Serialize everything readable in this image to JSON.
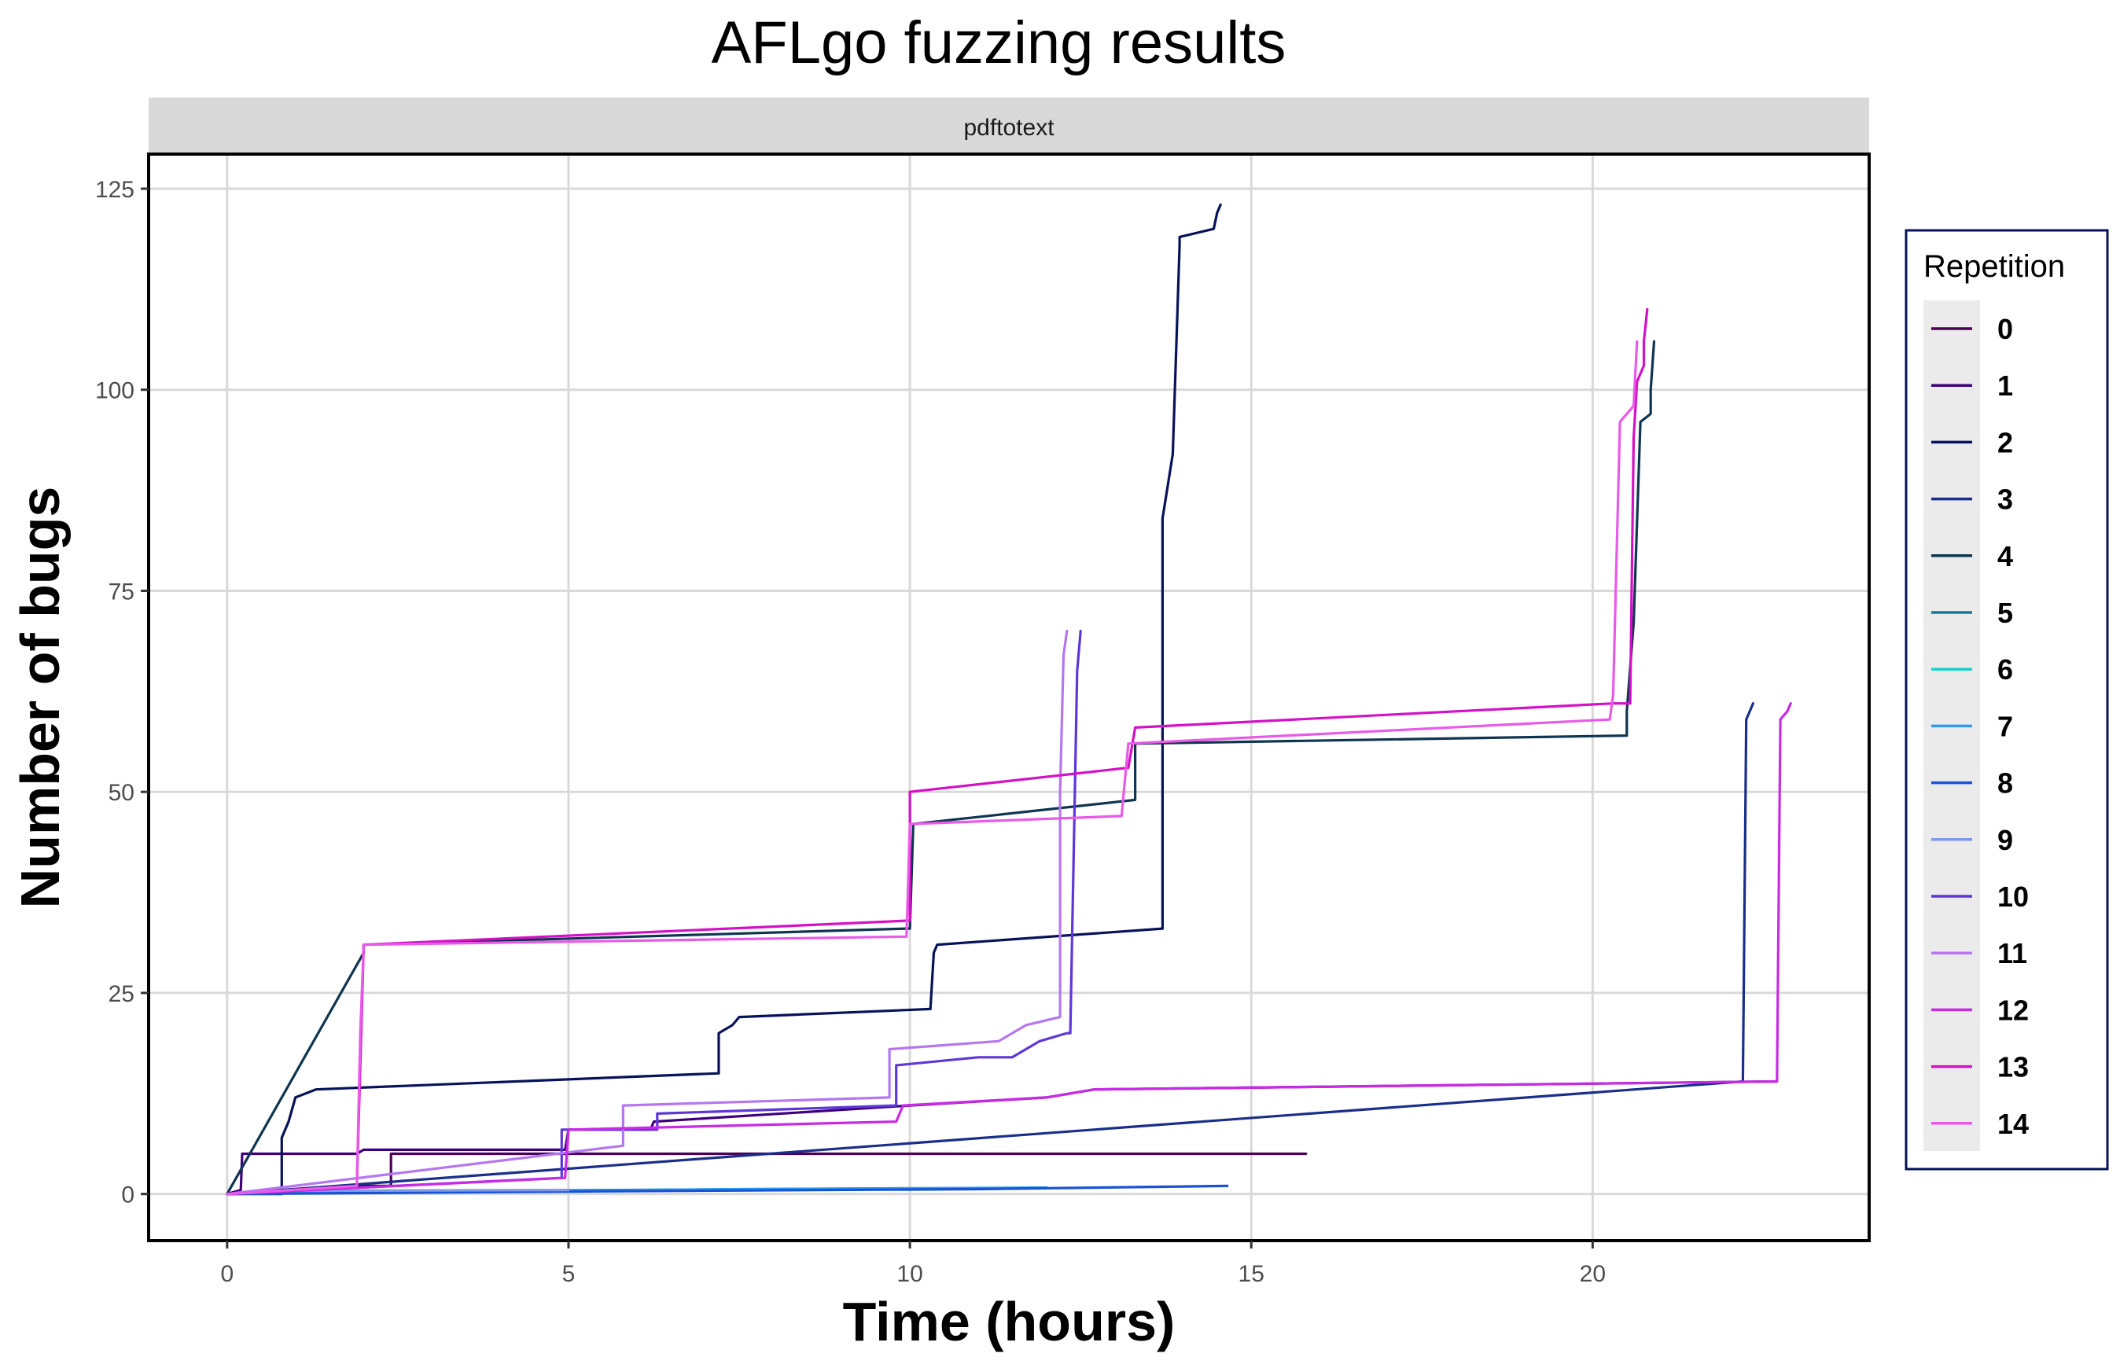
{
  "chart_data": {
    "type": "line",
    "title": "AFLgo fuzzing results",
    "facet_label": "pdftotext",
    "xlabel": "Time (hours)",
    "ylabel": "Number of bugs",
    "xlim": [
      -1.15,
      24.05
    ],
    "ylim": [
      -5.8,
      129.3
    ],
    "x_ticks": [
      0,
      5,
      10,
      15,
      20
    ],
    "y_ticks": [
      0,
      25,
      50,
      75,
      100,
      125
    ],
    "grid": true,
    "legend": {
      "title": "Repetition",
      "position": "right"
    },
    "series": [
      {
        "name": "0",
        "color": "#4B0055",
        "x": [
          0,
          1.8,
          2.4,
          2.4,
          15.8
        ],
        "y": [
          0,
          1,
          1,
          5,
          5
        ]
      },
      {
        "name": "1",
        "color": "#3F007D",
        "x": [
          0,
          0.2,
          0.22,
          1.9,
          2.0,
          4.95,
          5.0,
          6.2,
          6.25,
          10.0,
          12.0,
          12.7,
          22.7
        ],
        "y": [
          0,
          0.5,
          5,
          5,
          5.5,
          5.5,
          8,
          8,
          9,
          11,
          12,
          13,
          14
        ]
      },
      {
        "name": "2",
        "color": "#08125A",
        "x": [
          0,
          0.8,
          0.8,
          0.9,
          1.0,
          1.3,
          7.2,
          7.2,
          7.4,
          7.5,
          10.3,
          10.35,
          10.4,
          13.7,
          13.7,
          13.85,
          13.95,
          13.95,
          14.45,
          14.5,
          14.55
        ],
        "y": [
          0,
          0,
          7,
          9,
          12,
          13,
          15,
          20,
          21,
          22,
          23,
          30,
          31,
          33,
          84,
          92,
          118,
          119,
          120,
          122,
          123
        ]
      },
      {
        "name": "3",
        "color": "#1A2E8A",
        "x": [
          0,
          22.2,
          22.25,
          22.3,
          22.35
        ],
        "y": [
          0,
          14,
          59,
          60,
          61
        ]
      },
      {
        "name": "4",
        "color": "#0F3550",
        "x": [
          0,
          2.0,
          2.0,
          9.95,
          10.0,
          10.05,
          13.3,
          13.3,
          20.5,
          20.5,
          20.6,
          20.7,
          20.85,
          20.85,
          20.9
        ],
        "y": [
          0,
          30,
          31,
          33,
          33,
          46,
          49,
          56,
          57,
          60,
          71,
          96,
          97,
          100,
          106
        ]
      },
      {
        "name": "5",
        "color": "#0E7C9A",
        "x": [
          0,
          1.9,
          9.9
        ],
        "y": [
          0,
          0.3,
          0.7
        ]
      },
      {
        "name": "6",
        "color": "#14D1CC",
        "x": [
          0,
          1.5,
          4.0
        ],
        "y": [
          0,
          0.2,
          0.4
        ]
      },
      {
        "name": "7",
        "color": "#2E9CF0",
        "x": [
          0,
          7.5,
          12.0
        ],
        "y": [
          0,
          0.6,
          0.8
        ]
      },
      {
        "name": "8",
        "color": "#1853D6",
        "x": [
          0,
          4.9,
          11.0,
          14.65
        ],
        "y": [
          0,
          0.3,
          0.6,
          1
        ]
      },
      {
        "name": "9",
        "color": "#7E9AE6",
        "x": [
          0,
          1.0,
          5.0
        ],
        "y": [
          0,
          0.4,
          0.5
        ]
      },
      {
        "name": "10",
        "color": "#5E37D8",
        "x": [
          0,
          4.9,
          4.9,
          6.3,
          6.3,
          9.8,
          9.8,
          11.0,
          11.5,
          11.9,
          12.3,
          12.35,
          12.45,
          12.5
        ],
        "y": [
          0,
          2,
          8,
          8,
          10,
          11,
          16,
          17,
          17,
          19,
          20,
          20,
          65,
          70
        ]
      },
      {
        "name": "11",
        "color": "#B477F0",
        "x": [
          0,
          5.8,
          5.8,
          9.7,
          9.7,
          11.3,
          11.7,
          12.2,
          12.2,
          12.25,
          12.3
        ],
        "y": [
          0,
          6,
          11,
          12,
          18,
          19,
          21,
          22,
          50,
          67,
          70
        ]
      },
      {
        "name": "12",
        "color": "#C92AE6",
        "x": [
          0,
          4.95,
          5.0,
          9.8,
          9.9,
          12.0,
          12.7,
          22.7,
          22.75,
          22.85,
          22.9
        ],
        "y": [
          0,
          2,
          8,
          9,
          11,
          12,
          13,
          14,
          59,
          60,
          61
        ]
      },
      {
        "name": "13",
        "color": "#D411C6",
        "x": [
          0,
          1.9,
          2.0,
          10.0,
          10.0,
          13.2,
          13.3,
          20.3,
          20.55,
          20.6,
          20.65,
          20.75,
          20.75,
          20.8
        ],
        "y": [
          0,
          1,
          31,
          34,
          50,
          53,
          58,
          61,
          61,
          94,
          101,
          103,
          106,
          110
        ]
      },
      {
        "name": "14",
        "color": "#E85AE8",
        "x": [
          0,
          1.9,
          1.95,
          2.0,
          9.95,
          10.0,
          13.1,
          13.2,
          20.25,
          20.3,
          20.4,
          20.6,
          20.65
        ],
        "y": [
          0,
          1,
          20,
          31,
          32,
          46,
          47,
          56,
          59,
          62,
          96,
          98,
          106
        ]
      }
    ]
  }
}
